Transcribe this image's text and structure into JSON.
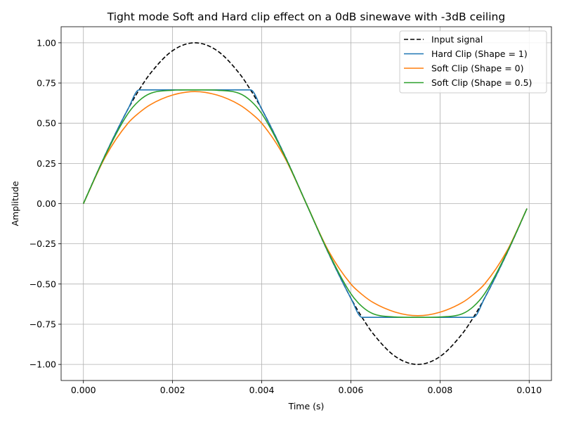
{
  "chart_data": {
    "type": "line",
    "title": "Tight mode Soft and Hard clip effect on a 0dB sinewave with -3dB ceiling",
    "xlabel": "Time (s)",
    "ylabel": "Amplitude",
    "xlim": [
      -0.0005,
      0.0105
    ],
    "ylim": [
      -1.1,
      1.1
    ],
    "grid": true,
    "legend_position": "top-right",
    "x_ticks": [
      "0.000",
      "0.002",
      "0.004",
      "0.006",
      "0.008",
      "0.010"
    ],
    "y_ticks": [
      "−1.00",
      "−0.75",
      "−0.50",
      "−0.25",
      "0.00",
      "0.25",
      "0.50",
      "0.75",
      "1.00"
    ],
    "x": [
      0.0,
      0.0005,
      0.001,
      0.00125,
      0.0015,
      0.002,
      0.0025,
      0.003,
      0.0035,
      0.00375,
      0.004,
      0.0045,
      0.005,
      0.0055,
      0.006,
      0.00625,
      0.0065,
      0.007,
      0.0075,
      0.008,
      0.0085,
      0.00875,
      0.009,
      0.0095,
      0.00995
    ],
    "series": [
      {
        "name": "Input signal",
        "color": "#000000",
        "dash": "dashed",
        "values": [
          0.0,
          0.309,
          0.588,
          0.707,
          0.809,
          0.951,
          1.0,
          0.951,
          0.809,
          0.707,
          0.588,
          0.309,
          0.0,
          -0.309,
          -0.588,
          -0.707,
          -0.809,
          -0.951,
          -1.0,
          -0.951,
          -0.809,
          -0.707,
          -0.588,
          -0.309,
          -0.031
        ]
      },
      {
        "name": "Hard Clip (Shape = 1)",
        "color": "#1f77b4",
        "dash": "solid",
        "values": [
          0.0,
          0.309,
          0.588,
          0.707,
          0.707,
          0.707,
          0.707,
          0.707,
          0.707,
          0.707,
          0.588,
          0.309,
          0.0,
          -0.309,
          -0.588,
          -0.707,
          -0.707,
          -0.707,
          -0.707,
          -0.707,
          -0.707,
          -0.707,
          -0.588,
          -0.309,
          -0.031
        ]
      },
      {
        "name": "Soft Clip (Shape = 0)",
        "color": "#ff7f0e",
        "dash": "solid",
        "values": [
          0.0,
          0.295,
          0.5,
          0.565,
          0.615,
          0.675,
          0.697,
          0.675,
          0.615,
          0.565,
          0.5,
          0.295,
          0.0,
          -0.295,
          -0.5,
          -0.565,
          -0.615,
          -0.675,
          -0.697,
          -0.675,
          -0.615,
          -0.565,
          -0.5,
          -0.295,
          -0.031
        ]
      },
      {
        "name": "Soft Clip (Shape = 0.5)",
        "color": "#2ca02c",
        "dash": "solid",
        "values": [
          0.0,
          0.305,
          0.56,
          0.64,
          0.685,
          0.705,
          0.707,
          0.705,
          0.685,
          0.64,
          0.56,
          0.305,
          0.0,
          -0.305,
          -0.56,
          -0.64,
          -0.685,
          -0.705,
          -0.707,
          -0.705,
          -0.685,
          -0.64,
          -0.56,
          -0.305,
          -0.031
        ]
      }
    ]
  }
}
